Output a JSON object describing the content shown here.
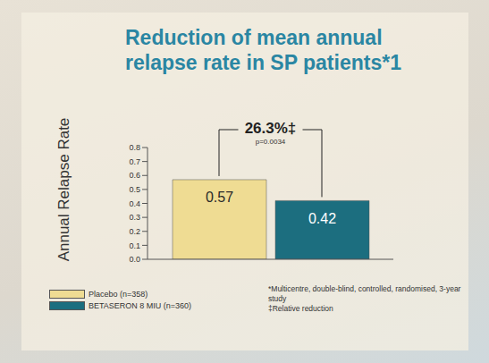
{
  "chart_data": {
    "type": "bar",
    "title": "Reduction of mean annual relapse rate in SP patients*1",
    "y_label": "Annual Relapse Rate",
    "categories": [
      null
    ],
    "series": [
      {
        "name": "Placebo (n=358)",
        "color": "#efdc93",
        "values": [
          0.57
        ]
      },
      {
        "name": "BETASERON 8 MIU (n=360)",
        "color": "#1c6e7f",
        "values": [
          0.42
        ]
      }
    ],
    "ylim": [
      0,
      0.8
    ],
    "yticks": [
      {
        "value": 0,
        "label": "0.0"
      },
      0.1,
      0.2,
      0.3,
      0.4,
      0.5,
      0.6,
      0.7,
      0.8
    ],
    "grid": false,
    "data_labels": true,
    "tick_labels": "y",
    "legend": "lower left",
    "annotations": [
      "26.3%‡",
      "p=0.0034"
    ],
    "footnotes": [
      "*Multicentre, double-blind, controlled, randomised, 3-year study",
      "‡Relative reduction"
    ]
  }
}
